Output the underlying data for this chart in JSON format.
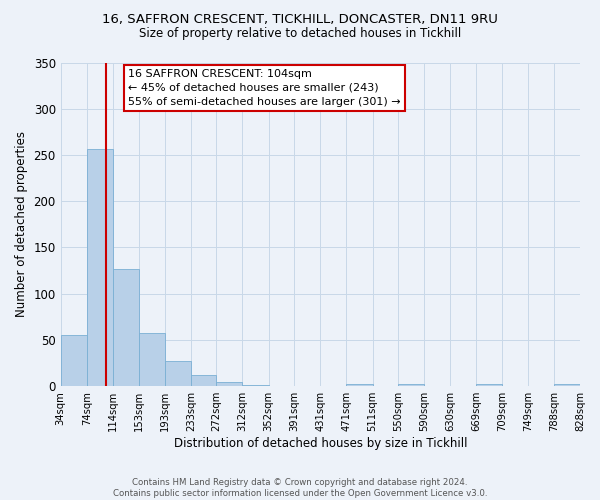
{
  "title_line1": "16, SAFFRON CRESCENT, TICKHILL, DONCASTER, DN11 9RU",
  "title_line2": "Size of property relative to detached houses in Tickhill",
  "xlabel": "Distribution of detached houses by size in Tickhill",
  "ylabel": "Number of detached properties",
  "bin_edges": [
    34,
    74,
    114,
    153,
    193,
    233,
    272,
    312,
    352,
    391,
    431,
    471,
    511,
    550,
    590,
    630,
    669,
    709,
    749,
    788,
    828
  ],
  "bin_labels": [
    "34sqm",
    "74sqm",
    "114sqm",
    "153sqm",
    "193sqm",
    "233sqm",
    "272sqm",
    "312sqm",
    "352sqm",
    "391sqm",
    "431sqm",
    "471sqm",
    "511sqm",
    "550sqm",
    "590sqm",
    "630sqm",
    "669sqm",
    "709sqm",
    "749sqm",
    "788sqm",
    "828sqm"
  ],
  "counts": [
    55,
    257,
    127,
    58,
    27,
    12,
    5,
    1,
    0,
    0,
    0,
    2,
    0,
    2,
    0,
    0,
    2,
    0,
    0,
    2
  ],
  "bar_color": "#b8d0e8",
  "bar_edge_color": "#7aafd4",
  "grid_color": "#c8d8e8",
  "background_color": "#edf2f9",
  "property_line_x": 104,
  "property_line_color": "#cc0000",
  "annotation_line1": "16 SAFFRON CRESCENT: 104sqm",
  "annotation_line2": "← 45% of detached houses are smaller (243)",
  "annotation_line3": "55% of semi-detached houses are larger (301) →",
  "annotation_box_color": "#ffffff",
  "annotation_box_edge": "#cc0000",
  "ylim": [
    0,
    350
  ],
  "yticks": [
    0,
    50,
    100,
    150,
    200,
    250,
    300,
    350
  ],
  "footer_line1": "Contains HM Land Registry data © Crown copyright and database right 2024.",
  "footer_line2": "Contains public sector information licensed under the Open Government Licence v3.0."
}
